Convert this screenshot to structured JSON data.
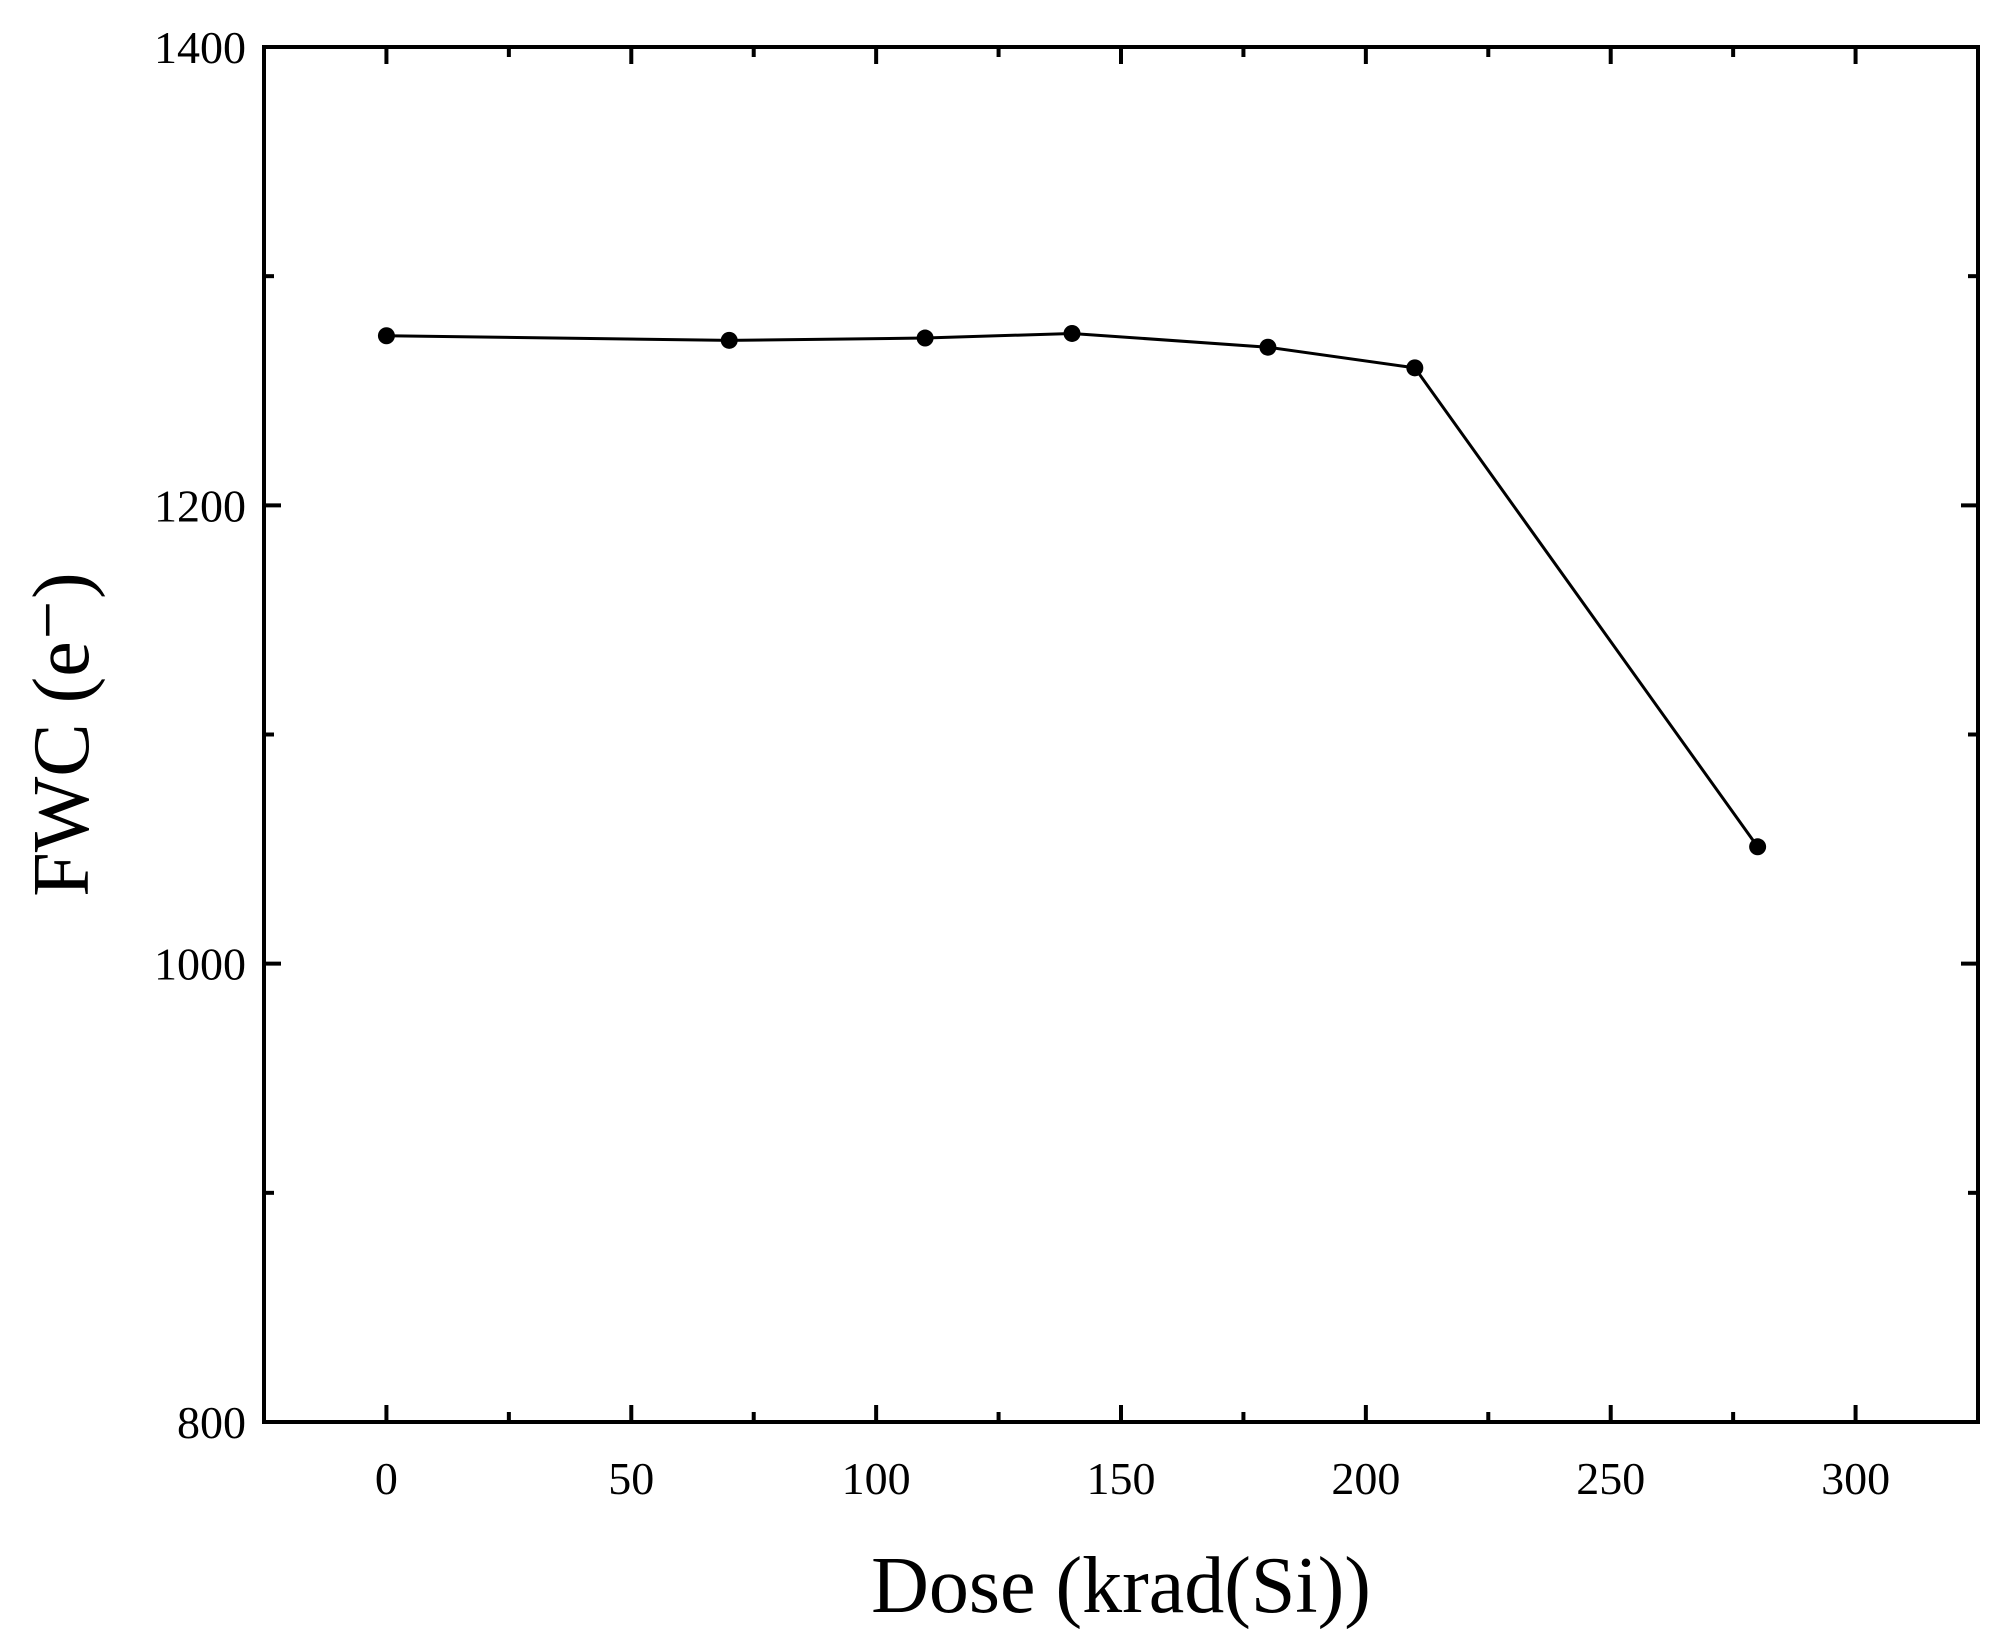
{
  "chart_data": {
    "type": "line",
    "title": "",
    "xlabel": "Dose (krad(Si))",
    "ylabel": "FWC (e⁻)",
    "xlim": [
      -25,
      325
    ],
    "ylim": [
      800,
      1400
    ],
    "x_ticks_major": [
      0,
      50,
      100,
      150,
      200,
      250,
      300
    ],
    "x_ticks_minor": [
      25,
      75,
      125,
      175,
      225,
      275
    ],
    "y_ticks_major": [
      800,
      1000,
      1200,
      1400
    ],
    "y_ticks_minor": [
      900,
      1100,
      1300
    ],
    "x_tick_labels": [
      "0",
      "50",
      "100",
      "150",
      "200",
      "250",
      "300"
    ],
    "y_tick_labels": [
      "800",
      "1000",
      "1200",
      "1400"
    ],
    "grid": false,
    "legend": "none",
    "colors": {
      "line": "#000000",
      "marker": "#000000",
      "frame": "#000000"
    },
    "series": [
      {
        "x": [
          0,
          70,
          110,
          140,
          180,
          210,
          280
        ],
        "y": [
          1274,
          1272,
          1273,
          1275,
          1269,
          1260,
          1051
        ]
      }
    ]
  }
}
